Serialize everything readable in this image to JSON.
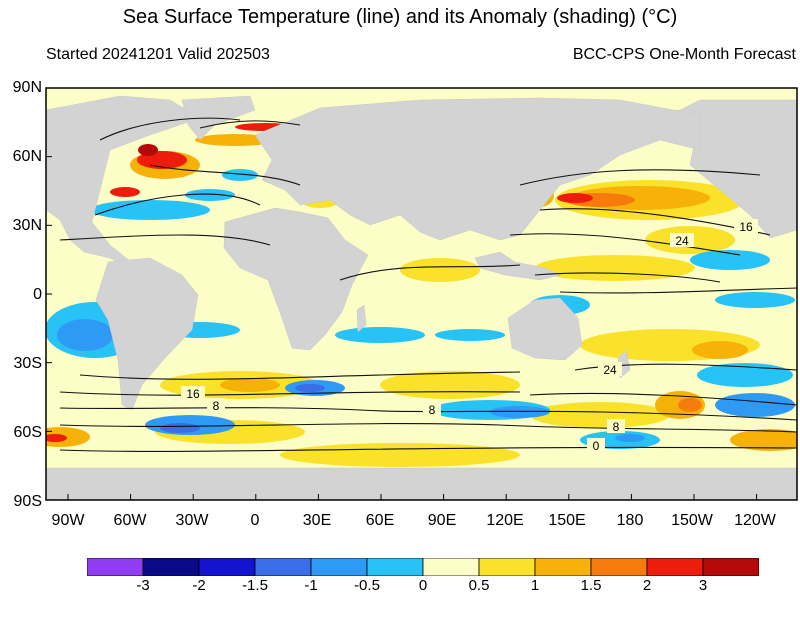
{
  "title": "Sea Surface Temperature (line) and its Anomaly (shading) (°C)",
  "subtitle_left": "Started 20241201  Valid 202503",
  "subtitle_right": "BCC-CPS One-Month Forecast",
  "lat_labels": [
    "90N",
    "60N",
    "30N",
    "0",
    "30S",
    "60S",
    "90S"
  ],
  "lon_labels": [
    "90W",
    "60W",
    "30W",
    "0",
    "30E",
    "60E",
    "90E",
    "120E",
    "150E",
    "180",
    "150W",
    "120W"
  ],
  "contour_labels": [
    "16",
    "24",
    "24",
    "16",
    "8",
    "8",
    "8",
    "0"
  ],
  "colorbar": {
    "colors": [
      "#8f3cf2",
      "#0a0a88",
      "#1414d0",
      "#3a6ee8",
      "#2f9af5",
      "#27c2f6",
      "#fdfdc8",
      "#fbe22a",
      "#f7b20a",
      "#f57c0c",
      "#ee1c0c",
      "#b40a0a"
    ],
    "labels": [
      "-3",
      "-2",
      "-1.5",
      "-1",
      "-0.5",
      "0",
      "0.5",
      "1",
      "1.5",
      "2",
      "3"
    ]
  },
  "colors": {
    "land": "#d3d3d3",
    "contour": "#111111",
    "ocean_neutral": "#fdfdc8"
  }
}
